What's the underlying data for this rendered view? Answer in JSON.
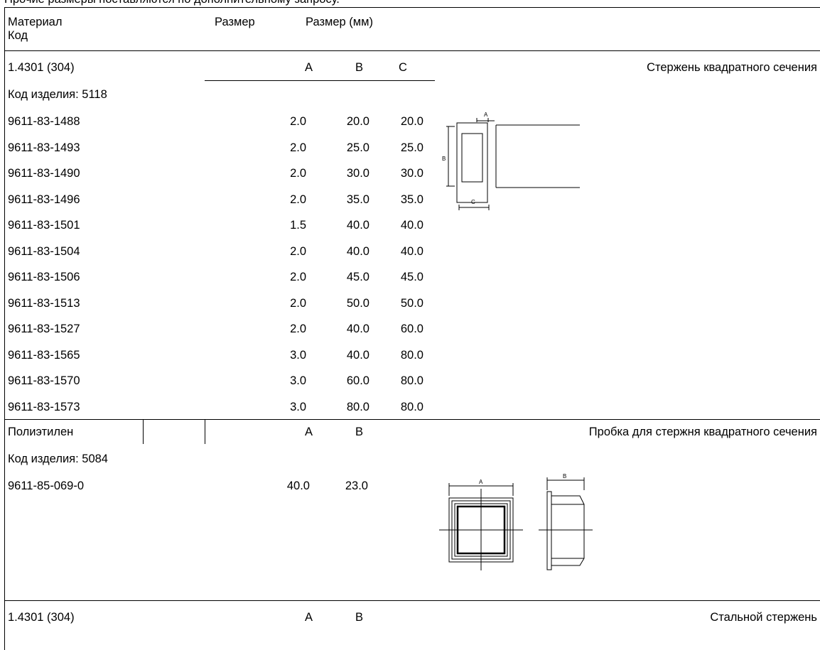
{
  "top_note": "Прочие размеры поставляются по дополнительному запросу.",
  "header": {
    "material": "Материал",
    "code": "Код",
    "size": "Размер",
    "size_mm": "Размер (мм)"
  },
  "section1": {
    "material": "1.4301 (304)",
    "col_a": "A",
    "col_b": "B",
    "col_c": "C",
    "title": "Стержень квадратного сечения",
    "product_code": "Код изделия: 5118",
    "rows": [
      {
        "code": "9611-83-1488",
        "a": "2.0",
        "b": "20.0",
        "c": "20.0"
      },
      {
        "code": "9611-83-1493",
        "a": "2.0",
        "b": "25.0",
        "c": "25.0"
      },
      {
        "code": "9611-83-1490",
        "a": "2.0",
        "b": "30.0",
        "c": "30.0"
      },
      {
        "code": "9611-83-1496",
        "a": "2.0",
        "b": "35.0",
        "c": "35.0"
      },
      {
        "code": "9611-83-1501",
        "a": "1.5",
        "b": "40.0",
        "c": "40.0"
      },
      {
        "code": "9611-83-1504",
        "a": "2.0",
        "b": "40.0",
        "c": "40.0"
      },
      {
        "code": "9611-83-1506",
        "a": "2.0",
        "b": "45.0",
        "c": "45.0"
      },
      {
        "code": "9611-83-1513",
        "a": "2.0",
        "b": "50.0",
        "c": "50.0"
      },
      {
        "code": "9611-83-1527",
        "a": "2.0",
        "b": "40.0",
        "c": "60.0"
      },
      {
        "code": "9611-83-1565",
        "a": "3.0",
        "b": "40.0",
        "c": "80.0"
      },
      {
        "code": "9611-83-1570",
        "a": "3.0",
        "b": "60.0",
        "c": "80.0"
      },
      {
        "code": "9611-83-1573",
        "a": "3.0",
        "b": "80.0",
        "c": "80.0"
      }
    ],
    "drawing_labels": {
      "a": "A",
      "b": "B",
      "c": "C"
    }
  },
  "section2": {
    "material": "Полиэтилен",
    "col_a": "A",
    "col_b": "B",
    "title": "Пробка для стержня квадратного сечения",
    "product_code": "Код изделия: 5084",
    "rows": [
      {
        "code": "9611-85-069-0",
        "a": "40.0",
        "b": "23.0"
      }
    ],
    "drawing_labels": {
      "a": "A",
      "b": "B"
    }
  },
  "section3": {
    "material": "1.4301 (304)",
    "col_a": "A",
    "col_b": "B",
    "title": "Стальной стержень"
  }
}
